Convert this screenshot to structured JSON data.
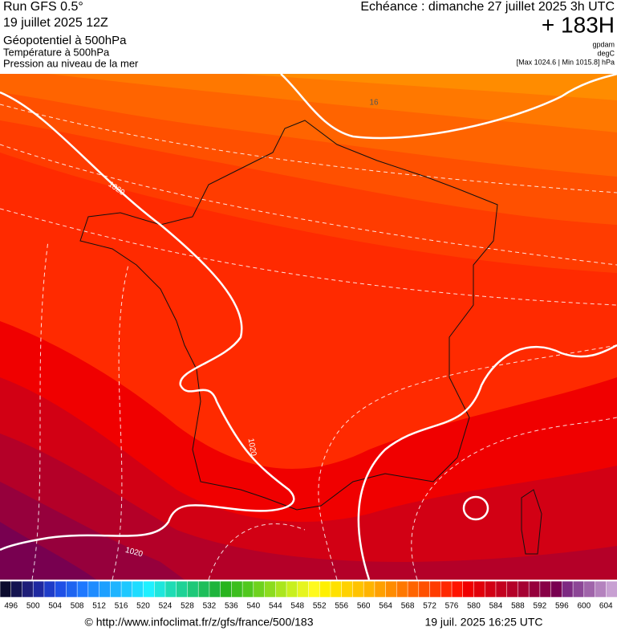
{
  "header": {
    "left": [
      "Run GFS 0.5°",
      "19 juillet 2025 12Z",
      "Géopotentiel à 500hPa",
      "Température à 500hPa",
      "Pression au niveau de la mer"
    ],
    "right": [
      "Echéance : dimanche 27 juillet 2025 3h UTC",
      "+ 183H",
      "gpdam",
      "degC",
      "[Max 1024.6 | Min 1015.8] hPa"
    ]
  },
  "map": {
    "isobar_labels": [
      "1020",
      "1020",
      "1020",
      "16"
    ]
  },
  "legend": {
    "labels": [
      496,
      500,
      504,
      508,
      512,
      516,
      520,
      524,
      528,
      532,
      536,
      540,
      544,
      548,
      552,
      556,
      560,
      564,
      568,
      572,
      576,
      580,
      584,
      588,
      592,
      596,
      600,
      604
    ],
    "colors": [
      "#0b0b2e",
      "#141450",
      "#1e1e78",
      "#1e28a0",
      "#1e3cc8",
      "#1e50e6",
      "#1e64f0",
      "#1e78ff",
      "#1e8cff",
      "#1ea0ff",
      "#1eb4ff",
      "#1ec8ff",
      "#1edcff",
      "#1ef0ff",
      "#1ee6dc",
      "#1edcb4",
      "#1ed296",
      "#1ec878",
      "#1ebe5a",
      "#1eb43c",
      "#28b41e",
      "#3cbe1e",
      "#50c81e",
      "#6ed21e",
      "#8cdc1e",
      "#aae61e",
      "#c8f01e",
      "#e6f51e",
      "#fffa1e",
      "#fff000",
      "#ffe100",
      "#ffd200",
      "#ffc300",
      "#ffb400",
      "#ffa000",
      "#ff8c00",
      "#ff7800",
      "#ff6400",
      "#ff5000",
      "#ff3c00",
      "#ff2800",
      "#ff1400",
      "#f00000",
      "#e1000a",
      "#d20014",
      "#c3001e",
      "#b40028",
      "#a50032",
      "#96003c",
      "#870046",
      "#780050",
      "#7d2a82",
      "#8c4696",
      "#a064aa",
      "#b482be",
      "#c8a0d2"
    ]
  },
  "footer": {
    "left": "© http://www.infoclimat.fr/z/gfs/france/500/183",
    "right": "19 juil. 2025 16:25 UTC"
  }
}
